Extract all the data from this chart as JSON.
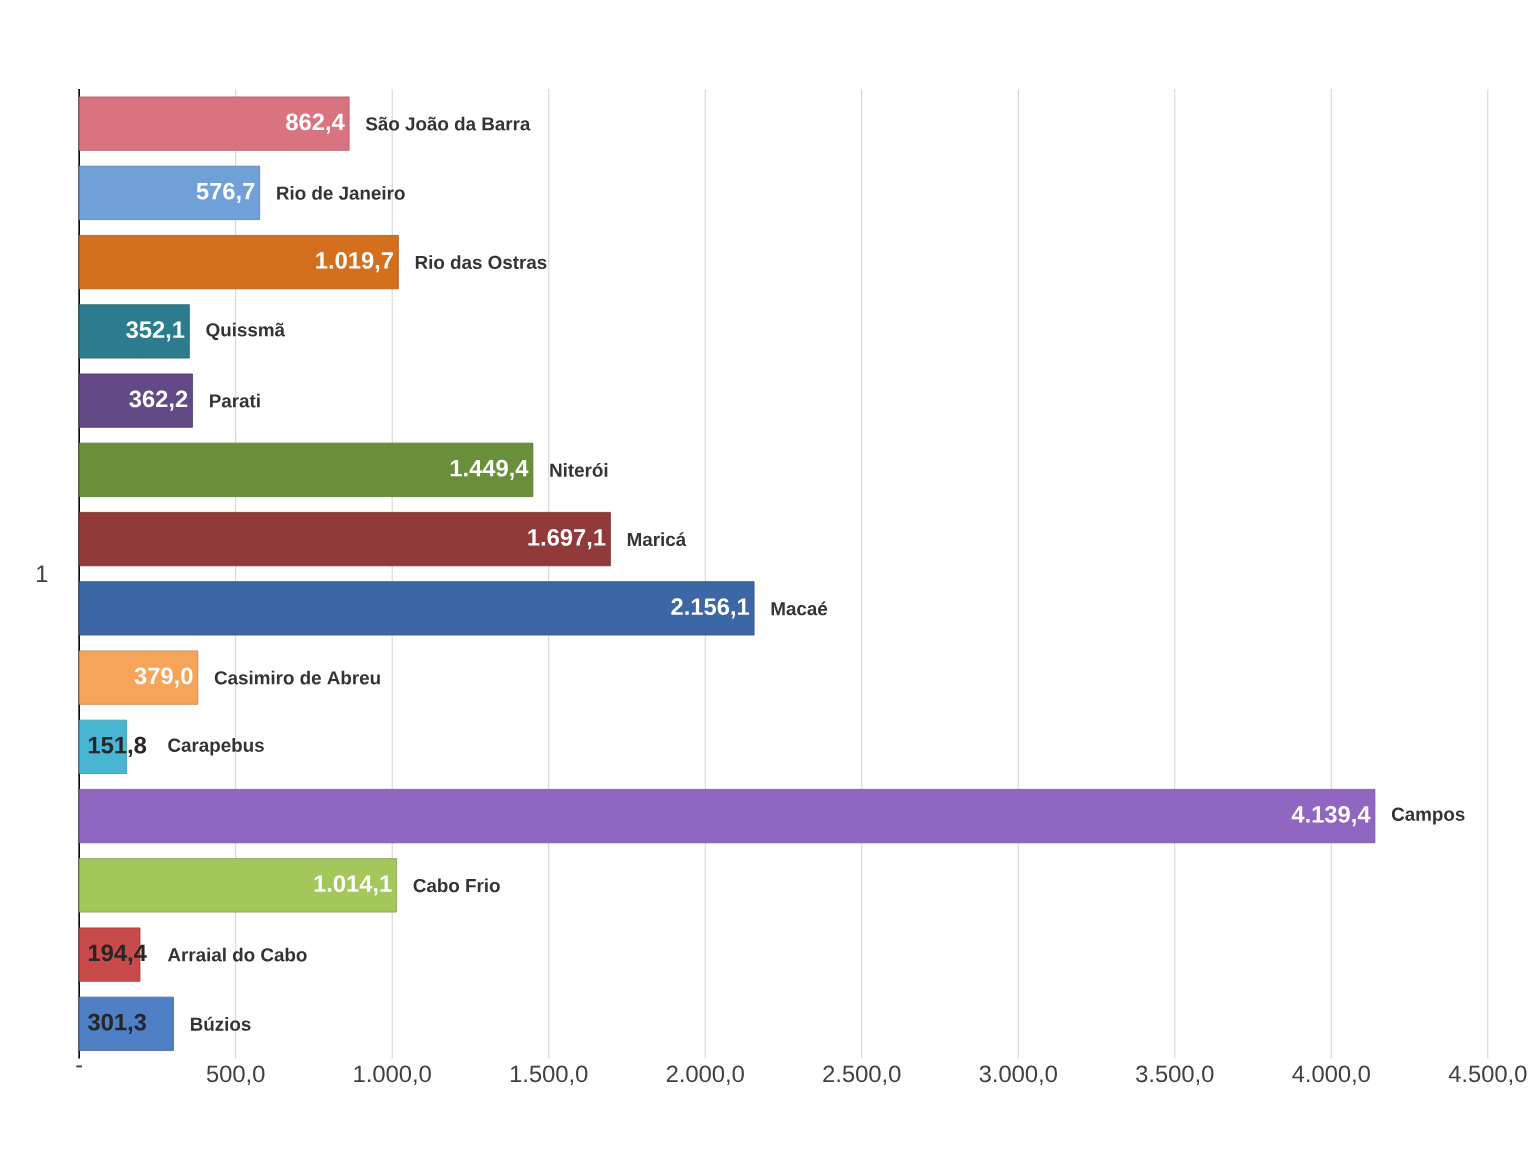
{
  "chart_data": {
    "type": "bar",
    "orientation": "horizontal",
    "categories": [
      "1"
    ],
    "xlim": [
      0,
      4500
    ],
    "xticks": [
      {
        "value": 0,
        "label": "-"
      },
      {
        "value": 500,
        "label": "500,0"
      },
      {
        "value": 1000,
        "label": "1.000,0"
      },
      {
        "value": 1500,
        "label": "1.500,0"
      },
      {
        "value": 2000,
        "label": "2.000,0"
      },
      {
        "value": 2500,
        "label": "2.500,0"
      },
      {
        "value": 3000,
        "label": "3.000,0"
      },
      {
        "value": 3500,
        "label": "3.500,0"
      },
      {
        "value": 4000,
        "label": "4.000,0"
      },
      {
        "value": 4500,
        "label": "4.500,0"
      }
    ],
    "grid": "x",
    "series": [
      {
        "name": "São João da Barra",
        "color": "#d9737f",
        "values": [
          862.4
        ],
        "value_labels": [
          "862,4"
        ]
      },
      {
        "name": "Rio de Janeiro",
        "color": "#6fa0d8",
        "values": [
          576.7
        ],
        "value_labels": [
          "576,7"
        ]
      },
      {
        "name": "Rio das Ostras",
        "color": "#d46f1e",
        "values": [
          1019.7
        ],
        "value_labels": [
          "1.019,7"
        ]
      },
      {
        "name": "Quissmã",
        "color": "#2b7d8e",
        "values": [
          352.1
        ],
        "value_labels": [
          "352,1"
        ]
      },
      {
        "name": "Parati",
        "color": "#634a86",
        "values": [
          362.2
        ],
        "value_labels": [
          "362,2"
        ]
      },
      {
        "name": "Niterói",
        "color": "#6a8f3a",
        "values": [
          1449.4
        ],
        "value_labels": [
          "1.449,4"
        ]
      },
      {
        "name": "Maricá",
        "color": "#923a3a",
        "values": [
          1697.1
        ],
        "value_labels": [
          "1.697,1"
        ]
      },
      {
        "name": "Macaé",
        "color": "#3d66a5",
        "values": [
          2156.1
        ],
        "value_labels": [
          "2.156,1"
        ]
      },
      {
        "name": "Casimiro de Abreu",
        "color": "#f5a45a",
        "values": [
          379.0
        ],
        "value_labels": [
          "379,0"
        ]
      },
      {
        "name": "Carapebus",
        "color": "#48b5d3",
        "values": [
          151.8
        ],
        "value_labels": [
          "151,8"
        ]
      },
      {
        "name": "Campos",
        "color": "#9166c0",
        "values": [
          4139.4
        ],
        "value_labels": [
          "4.139,4"
        ]
      },
      {
        "name": "Cabo Frio",
        "color": "#a3c75a",
        "values": [
          1014.1
        ],
        "value_labels": [
          "1.014,1"
        ]
      },
      {
        "name": "Arraial do Cabo",
        "color": "#c84a4a",
        "values": [
          194.4
        ],
        "value_labels": [
          "194,4"
        ]
      },
      {
        "name": "Búzios",
        "color": "#4f7fc4",
        "values": [
          301.3
        ],
        "value_labels": [
          "301,3"
        ]
      }
    ]
  }
}
